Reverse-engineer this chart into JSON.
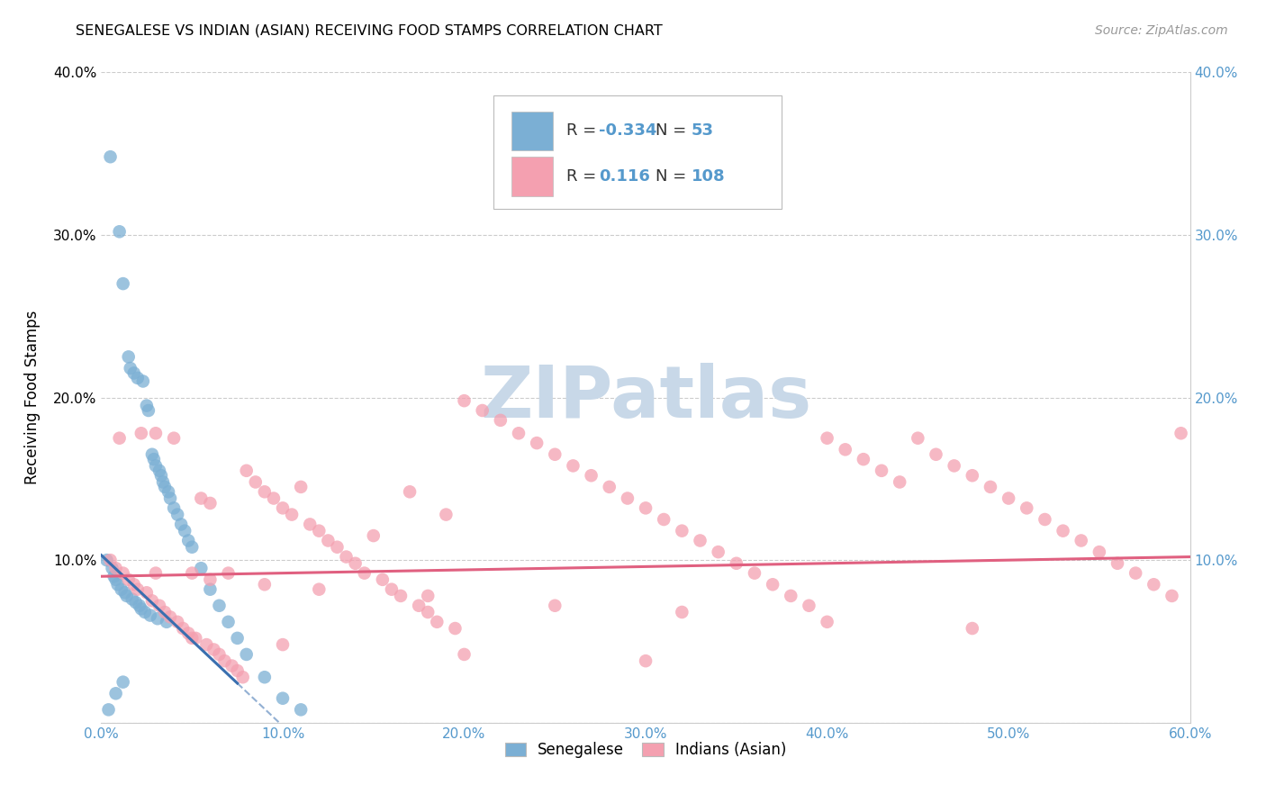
{
  "title": "SENEGALESE VS INDIAN (ASIAN) RECEIVING FOOD STAMPS CORRELATION CHART",
  "source": "Source: ZipAtlas.com",
  "ylabel": "Receiving Food Stamps",
  "xlim": [
    0.0,
    0.6
  ],
  "ylim": [
    0.0,
    0.4
  ],
  "xticks": [
    0.0,
    0.1,
    0.2,
    0.3,
    0.4,
    0.5,
    0.6
  ],
  "xtick_labels": [
    "0.0%",
    "10.0%",
    "20.0%",
    "30.0%",
    "40.0%",
    "50.0%",
    "60.0%"
  ],
  "yticks": [
    0.0,
    0.1,
    0.2,
    0.3,
    0.4
  ],
  "ytick_labels_left": [
    "",
    "10.0%",
    "20.0%",
    "30.0%",
    "40.0%"
  ],
  "ytick_labels_right": [
    "",
    "10.0%",
    "20.0%",
    "30.0%",
    "40.0%"
  ],
  "bg_color": "#ffffff",
  "grid_color": "#cccccc",
  "watermark_text": "ZIPatlas",
  "watermark_color": "#c8d8e8",
  "blue_color": "#7bafd4",
  "pink_color": "#f4a0b0",
  "blue_line_color": "#3a6faf",
  "pink_line_color": "#e06080",
  "legend_blue_label": "Senegalese",
  "legend_pink_label": "Indians (Asian)",
  "R_blue": "-0.334",
  "N_blue": "53",
  "R_pink": "0.116",
  "N_pink": "108",
  "blue_x": [
    0.003,
    0.005,
    0.006,
    0.007,
    0.008,
    0.009,
    0.01,
    0.011,
    0.012,
    0.013,
    0.014,
    0.015,
    0.016,
    0.017,
    0.018,
    0.019,
    0.02,
    0.021,
    0.022,
    0.023,
    0.024,
    0.025,
    0.026,
    0.027,
    0.028,
    0.029,
    0.03,
    0.031,
    0.032,
    0.033,
    0.034,
    0.035,
    0.036,
    0.037,
    0.038,
    0.04,
    0.042,
    0.044,
    0.046,
    0.048,
    0.05,
    0.055,
    0.06,
    0.065,
    0.07,
    0.075,
    0.08,
    0.09,
    0.1,
    0.11,
    0.004,
    0.008,
    0.012
  ],
  "blue_y": [
    0.1,
    0.348,
    0.095,
    0.09,
    0.088,
    0.085,
    0.302,
    0.082,
    0.27,
    0.08,
    0.078,
    0.225,
    0.218,
    0.076,
    0.215,
    0.074,
    0.212,
    0.072,
    0.07,
    0.21,
    0.068,
    0.195,
    0.192,
    0.066,
    0.165,
    0.162,
    0.158,
    0.064,
    0.155,
    0.152,
    0.148,
    0.145,
    0.062,
    0.142,
    0.138,
    0.132,
    0.128,
    0.122,
    0.118,
    0.112,
    0.108,
    0.095,
    0.082,
    0.072,
    0.062,
    0.052,
    0.042,
    0.028,
    0.015,
    0.008,
    0.008,
    0.018,
    0.025
  ],
  "pink_x": [
    0.005,
    0.008,
    0.01,
    0.012,
    0.015,
    0.018,
    0.02,
    0.022,
    0.025,
    0.028,
    0.03,
    0.032,
    0.035,
    0.038,
    0.04,
    0.042,
    0.045,
    0.048,
    0.05,
    0.052,
    0.055,
    0.058,
    0.06,
    0.062,
    0.065,
    0.068,
    0.07,
    0.072,
    0.075,
    0.078,
    0.08,
    0.085,
    0.09,
    0.095,
    0.1,
    0.105,
    0.11,
    0.115,
    0.12,
    0.125,
    0.13,
    0.135,
    0.14,
    0.145,
    0.15,
    0.155,
    0.16,
    0.165,
    0.17,
    0.175,
    0.18,
    0.185,
    0.19,
    0.195,
    0.2,
    0.21,
    0.22,
    0.23,
    0.24,
    0.25,
    0.26,
    0.27,
    0.28,
    0.29,
    0.3,
    0.31,
    0.32,
    0.33,
    0.34,
    0.35,
    0.36,
    0.37,
    0.38,
    0.39,
    0.4,
    0.41,
    0.42,
    0.43,
    0.44,
    0.45,
    0.46,
    0.47,
    0.48,
    0.49,
    0.5,
    0.51,
    0.52,
    0.53,
    0.54,
    0.55,
    0.56,
    0.57,
    0.58,
    0.59,
    0.595,
    0.03,
    0.06,
    0.09,
    0.12,
    0.18,
    0.25,
    0.32,
    0.4,
    0.48,
    0.05,
    0.1,
    0.2,
    0.3
  ],
  "pink_y": [
    0.1,
    0.095,
    0.175,
    0.092,
    0.088,
    0.085,
    0.082,
    0.178,
    0.08,
    0.075,
    0.178,
    0.072,
    0.068,
    0.065,
    0.175,
    0.062,
    0.058,
    0.055,
    0.092,
    0.052,
    0.138,
    0.048,
    0.135,
    0.045,
    0.042,
    0.038,
    0.092,
    0.035,
    0.032,
    0.028,
    0.155,
    0.148,
    0.142,
    0.138,
    0.132,
    0.128,
    0.145,
    0.122,
    0.118,
    0.112,
    0.108,
    0.102,
    0.098,
    0.092,
    0.115,
    0.088,
    0.082,
    0.078,
    0.142,
    0.072,
    0.068,
    0.062,
    0.128,
    0.058,
    0.198,
    0.192,
    0.186,
    0.178,
    0.172,
    0.165,
    0.158,
    0.152,
    0.145,
    0.138,
    0.132,
    0.125,
    0.118,
    0.112,
    0.105,
    0.098,
    0.092,
    0.085,
    0.078,
    0.072,
    0.175,
    0.168,
    0.162,
    0.155,
    0.148,
    0.175,
    0.165,
    0.158,
    0.152,
    0.145,
    0.138,
    0.132,
    0.125,
    0.118,
    0.112,
    0.105,
    0.098,
    0.092,
    0.085,
    0.078,
    0.178,
    0.092,
    0.088,
    0.085,
    0.082,
    0.078,
    0.072,
    0.068,
    0.062,
    0.058,
    0.052,
    0.048,
    0.042,
    0.038
  ],
  "blue_line_x": [
    0.0,
    0.075,
    0.075,
    0.2
  ],
  "blue_line_solid": [
    0.0,
    0.075
  ],
  "blue_line_dashed": [
    0.075,
    0.2
  ],
  "blue_line_intercept": 0.103,
  "blue_line_slope": -1.05,
  "pink_line_intercept": 0.09,
  "pink_line_slope": 0.02
}
